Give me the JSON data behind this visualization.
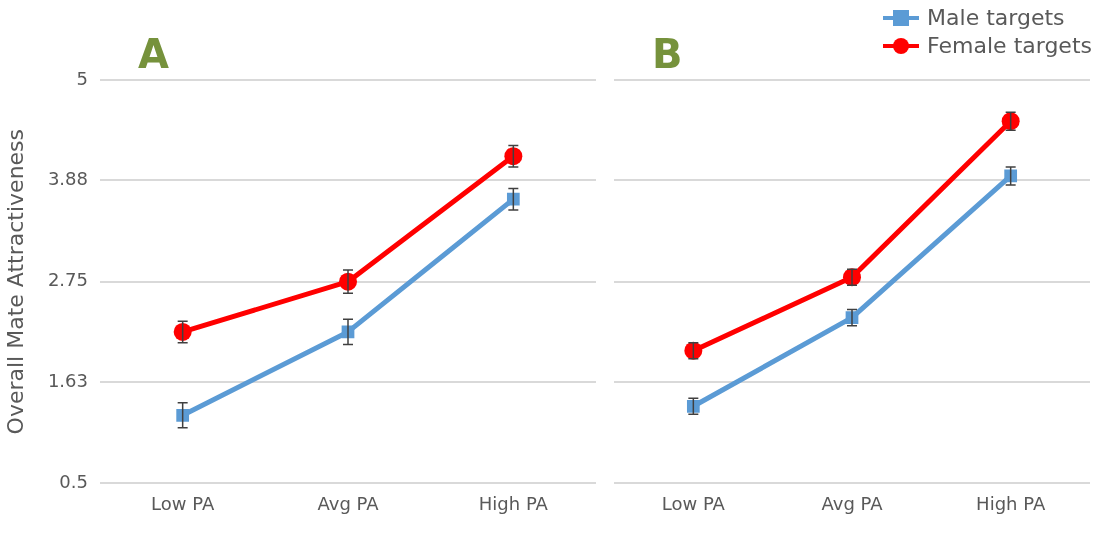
{
  "chart_data": [
    {
      "type": "line",
      "title": "A",
      "ylabel": "Overall Mate Attractiveness",
      "categories": [
        "Low PA",
        "Avg PA",
        "High PA"
      ],
      "series": [
        {
          "color": "#5b9bd5",
          "marker": "square",
          "values": [
            1.26,
            2.19,
            3.67
          ],
          "errors": [
            0.14,
            0.14,
            0.12
          ]
        },
        {
          "color": "#ff0000",
          "marker": "circle",
          "values": [
            2.19,
            2.75,
            4.15
          ],
          "errors": [
            0.12,
            0.13,
            0.12
          ]
        }
      ],
      "ylim": [
        0.5,
        5
      ],
      "yticks": [
        0.5,
        1.63,
        2.75,
        3.88,
        5
      ],
      "grid": "y",
      "legend": false
    },
    {
      "type": "line",
      "title": "B",
      "categories": [
        "Low PA",
        "Avg PA",
        "High PA"
      ],
      "series": [
        {
          "name": "Male targets",
          "color": "#5b9bd5",
          "marker": "square",
          "values": [
            1.36,
            2.35,
            3.93
          ],
          "errors": [
            0.09,
            0.09,
            0.1
          ]
        },
        {
          "name": "Female targets",
          "color": "#ff0000",
          "marker": "circle",
          "values": [
            1.98,
            2.8,
            4.54
          ],
          "errors": [
            0.09,
            0.09,
            0.1
          ]
        }
      ],
      "ylim": [
        0.5,
        5
      ],
      "yticks": [
        0.5,
        1.63,
        2.75,
        3.88,
        5
      ],
      "grid": "y",
      "tick_labels": "x",
      "legend": "top right"
    }
  ]
}
